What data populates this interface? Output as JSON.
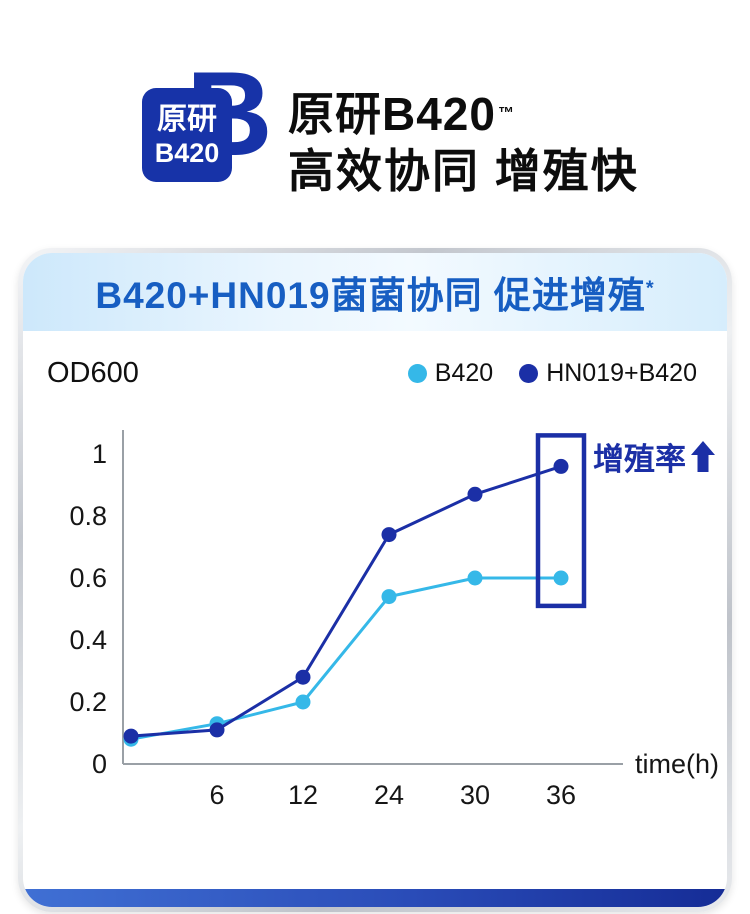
{
  "page": {
    "brand": {
      "badge_line1": "原研",
      "badge_line2": "B420",
      "big_letter": "B",
      "trademark": "™"
    },
    "title": {
      "line1": "原研B420",
      "trademark": "™",
      "line2": "高效协同 增殖快"
    },
    "colors": {
      "brand_blue": "#1733a8",
      "banner_text_blue": "#175ec2",
      "cyan": "#35b8e8",
      "dark_blue": "#1b2fa6"
    }
  },
  "card": {
    "banner": {
      "text": "B420+HN019菌菌协同 促进增殖",
      "superscript": "*"
    }
  },
  "chart_data": {
    "type": "line",
    "title": "B420+HN019菌菌协同 促进增殖*",
    "ylabel": "OD600",
    "xlabel": "time(h)",
    "x": [
      0,
      6,
      12,
      24,
      30,
      36
    ],
    "yticks": [
      0,
      0.2,
      0.4,
      0.6,
      0.8,
      1
    ],
    "ylim": [
      0,
      1
    ],
    "grid": false,
    "legend_position": "top-right",
    "series": [
      {
        "name": "B420",
        "color": "#35b8e8",
        "values": [
          0.08,
          0.13,
          0.2,
          0.54,
          0.6,
          0.6
        ]
      },
      {
        "name": "HN019+B420",
        "color": "#1b2fa6",
        "values": [
          0.09,
          0.11,
          0.28,
          0.74,
          0.87,
          0.96
        ]
      }
    ],
    "annotation": {
      "label": "增殖率",
      "arrow": "up"
    },
    "highlight_box": {
      "x_index": 5,
      "value_top": 1.06,
      "value_bottom": 0.51
    }
  }
}
